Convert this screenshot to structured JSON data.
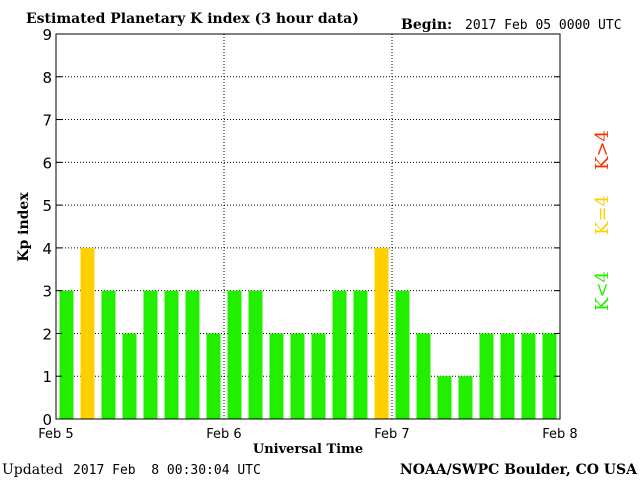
{
  "header": {
    "title": "Estimated Planetary K index (3 hour data)",
    "begin_label": "Begin:",
    "begin_value": "2017 Feb 05 0000 UTC"
  },
  "footer": {
    "updated_label": "Updated",
    "updated_value": "2017 Feb  8 00:30:04 UTC",
    "credit": "NOAA/SWPC Boulder, CO USA"
  },
  "legend": {
    "greater": "K>4",
    "equal": "K=4",
    "less": "K<4"
  },
  "colors": {
    "low": "#22ee00",
    "mid": "#ffd000",
    "high": "#ff3300",
    "grid": "#000000"
  },
  "chart_data": {
    "type": "bar",
    "title": "Estimated Planetary K index (3 hour data)",
    "xlabel": "Universal Time",
    "ylabel": "Kp index",
    "ylim": [
      0,
      9
    ],
    "y_ticks": [
      "0",
      "1",
      "2",
      "3",
      "4",
      "5",
      "6",
      "7",
      "8",
      "9"
    ],
    "x_ticks": [
      "Feb 5",
      "Feb 6",
      "Feb 7",
      "Feb 8"
    ],
    "grid": true,
    "bin_hours": 3,
    "values": [
      3,
      4,
      3,
      2,
      3,
      3,
      3,
      2,
      3,
      3,
      2,
      2,
      2,
      3,
      3,
      4,
      3,
      2,
      1,
      1,
      2,
      2,
      2,
      2
    ]
  }
}
